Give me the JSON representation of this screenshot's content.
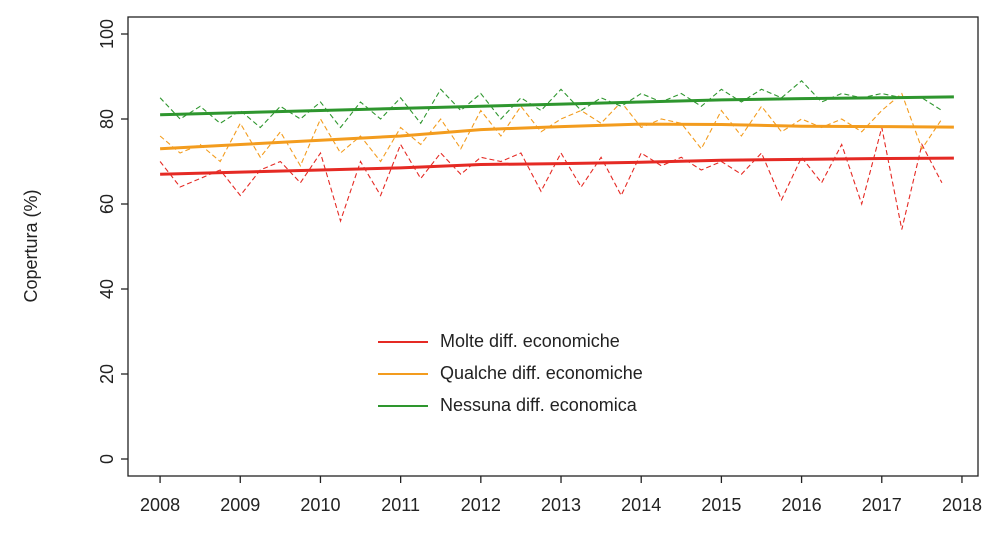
{
  "chart_data": {
    "type": "line",
    "y_label": "Copertura (%)",
    "x": [
      2008,
      2009,
      2010,
      2011,
      2012,
      2013,
      2014,
      2015,
      2016,
      2017,
      2017.9
    ],
    "x_monthly": [
      2008,
      2008.25,
      2008.5,
      2008.75,
      2009,
      2009.25,
      2009.5,
      2009.75,
      2010,
      2010.25,
      2010.5,
      2010.75,
      2011,
      2011.25,
      2011.5,
      2011.75,
      2012,
      2012.25,
      2012.5,
      2012.75,
      2013,
      2013.25,
      2013.5,
      2013.75,
      2014,
      2014.25,
      2014.5,
      2014.75,
      2015,
      2015.25,
      2015.5,
      2015.75,
      2016,
      2016.25,
      2016.5,
      2016.75,
      2017,
      2017.25,
      2017.5,
      2017.75
    ],
    "series": [
      {
        "name": "Molte diff. economiche",
        "color": "#e52a24",
        "values": [
          67,
          67.5,
          68,
          68.5,
          69.3,
          69.5,
          69.8,
          70.3,
          70.5,
          70.7,
          70.8
        ],
        "monthly_values": [
          70,
          64,
          66,
          68,
          62,
          68,
          70,
          65,
          72,
          56,
          70,
          62,
          74,
          66,
          72,
          67,
          71,
          70,
          72,
          63,
          72,
          64,
          71,
          62,
          72,
          69,
          71,
          68,
          70,
          67,
          72,
          61,
          71,
          65,
          74,
          60,
          78,
          54,
          74,
          65
        ]
      },
      {
        "name": "Qualche diff. economiche",
        "color": "#f39c1e",
        "values": [
          73,
          74,
          75,
          76,
          77.5,
          78.2,
          78.8,
          78.7,
          78.3,
          78.2,
          78.1
        ],
        "monthly_values": [
          76,
          72,
          74,
          70,
          79,
          71,
          77,
          69,
          80,
          72,
          76,
          70,
          78,
          74,
          80,
          73,
          82,
          76,
          83,
          77,
          80,
          82,
          79,
          84,
          78,
          80,
          79,
          73,
          82,
          76,
          83,
          77,
          80,
          78,
          80,
          77,
          82,
          86,
          73,
          80
        ]
      },
      {
        "name": "Nessuna diff. economica",
        "color": "#2e962e",
        "values": [
          81,
          81.5,
          82,
          82.5,
          83,
          83.5,
          84,
          84.5,
          84.8,
          85,
          85.2
        ],
        "monthly_values": [
          85,
          80,
          83,
          79,
          82,
          78,
          83,
          80,
          84,
          78,
          84,
          80,
          85,
          79,
          87,
          82,
          86,
          80,
          85,
          82,
          87,
          82,
          85,
          83,
          86,
          84,
          86,
          83,
          87,
          84,
          87,
          85,
          89,
          84,
          86,
          85,
          86,
          85,
          85,
          82
        ]
      }
    ],
    "xlim": [
      2007.6,
      2018.2
    ],
    "ylim": [
      -4,
      104
    ],
    "xticks": [
      2008,
      2009,
      2010,
      2011,
      2012,
      2013,
      2014,
      2015,
      2016,
      2017,
      2018
    ],
    "yticks": [
      0,
      20,
      40,
      60,
      80,
      100
    ],
    "legend": "center"
  }
}
